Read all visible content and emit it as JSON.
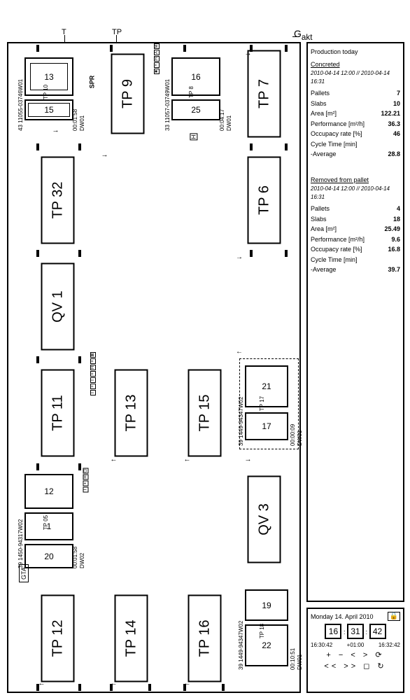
{
  "ext_labels": {
    "TP": "TP",
    "T": "T",
    "Gakt": "G",
    "Gakt_sub": "akt",
    "SPR": "SPR"
  },
  "stations": {
    "tp7": "TP 7",
    "tp6": "TP 6",
    "qv3": "QV 3",
    "tp9": "TP 9",
    "tp32": "TP 32",
    "qv1": "QV 1",
    "tp11": "TP 11",
    "tp12": "TP 12",
    "tp13": "TP 13",
    "tp14": "TP 14",
    "tp15": "TP 15",
    "tp16": "TP 16"
  },
  "pallets": {
    "p1": {
      "code": "43 11055-03746W01",
      "dw": "DW01",
      "tp": "TP 10",
      "time": "00:01:58",
      "a": "13",
      "b": "15"
    },
    "p2": {
      "code": "33 11057-03749W01",
      "dw": "DW01",
      "tp": "TP 8",
      "time": "00:04:17",
      "a": "16",
      "b": "25"
    },
    "p3": {
      "code": "39 1449-94347W02",
      "dw": "DW01",
      "tp": "TP 17",
      "time": "00:00:09",
      "a": "21",
      "b": "17"
    },
    "p4": {
      "code": "39 1449-94347W02",
      "dw": "DW01",
      "tp": "TP 18",
      "time": "00:10:51",
      "a": "19",
      "b": "22"
    },
    "p5": {
      "code": "39 1450-94317W02",
      "dw": "DW02",
      "tp": "TP 05",
      "time": "00:01:58",
      "a": "12",
      "b": "1",
      "c": "20"
    },
    "gta": "GTA"
  },
  "production": {
    "title": "Production today",
    "concreted": "Concreted",
    "removed": "Removed from pallet",
    "date": "2010-04-14 12:00 // 2010-04-14 16:31",
    "rows_c": [
      [
        "Pallets",
        "7"
      ],
      [
        "Slabs",
        "10"
      ],
      [
        "Area [m²]",
        "122.21"
      ],
      [
        "Performance [m²/h]",
        "36.3"
      ],
      [
        "Occupacy rate [%]",
        "46"
      ],
      [
        "Cycle Time [min]",
        ""
      ],
      [
        "-Average",
        "28.8"
      ]
    ],
    "rows_r": [
      [
        "Pallets",
        "4"
      ],
      [
        "Slabs",
        "18"
      ],
      [
        "Area [m²]",
        "25.49"
      ],
      [
        "Performance [m²/h]",
        "9.6"
      ],
      [
        "Occupacy rate [%]",
        "16.8"
      ],
      [
        "Cycle Time [min]",
        ""
      ],
      [
        "-Average",
        "39.7"
      ]
    ]
  },
  "clock": {
    "day": "Monday 14. April 2010",
    "h": "16",
    "m": "31",
    "s": "42",
    "t1": "16:30:42",
    "tz": "+01:00",
    "t2": "16:32:42",
    "btns1": "+  −  <  >  ⟳",
    "btns2": "<<  >>  ◻  ↻"
  }
}
